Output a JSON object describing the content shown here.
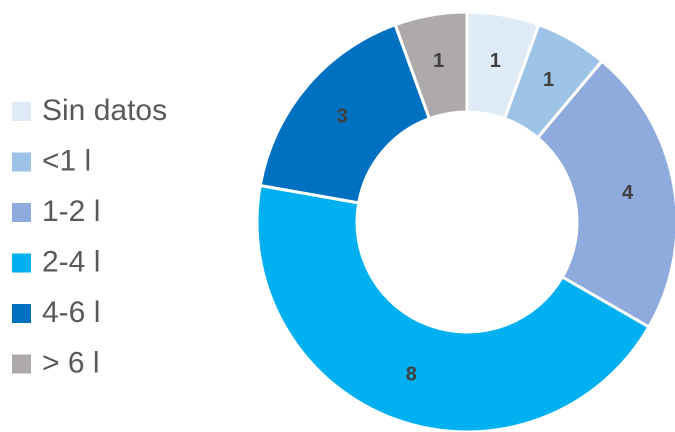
{
  "chart_data": {
    "type": "donut",
    "categories": [
      "Sin datos",
      "<1 l",
      "1-2 l",
      "2-4 l",
      "4-6 l",
      "> 6 l"
    ],
    "values": [
      1,
      1,
      4,
      8,
      3,
      1
    ],
    "colors": [
      "#deebf7",
      "#9dc3e6",
      "#8faadc",
      "#00b0f0",
      "#0070c0",
      "#aeaaaa"
    ],
    "legend": "left"
  }
}
